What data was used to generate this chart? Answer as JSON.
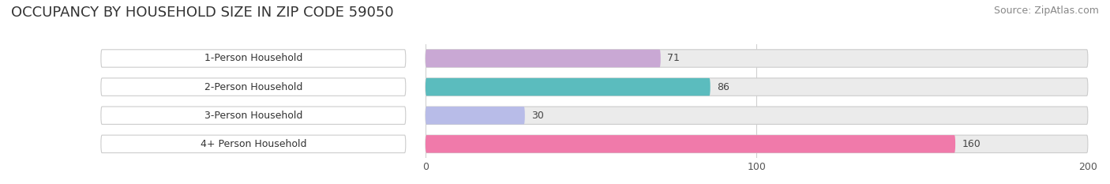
{
  "title": "OCCUPANCY BY HOUSEHOLD SIZE IN ZIP CODE 59050",
  "source": "Source: ZipAtlas.com",
  "categories": [
    "1-Person Household",
    "2-Person Household",
    "3-Person Household",
    "4+ Person Household"
  ],
  "values": [
    71,
    86,
    30,
    160
  ],
  "bar_colors": [
    "#c9a8d4",
    "#5bbcbe",
    "#b8bce8",
    "#f07aaa"
  ],
  "bar_border_colors": [
    "#b090c0",
    "#40a8aa",
    "#9090d0",
    "#e05090"
  ],
  "label_bg_color": "#ffffff",
  "bar_bg_color": "#ebebeb",
  "xlim": [
    -100,
    200
  ],
  "data_xlim": [
    0,
    200
  ],
  "xticks": [
    0,
    100,
    200
  ],
  "title_fontsize": 13,
  "source_fontsize": 9,
  "label_fontsize": 9,
  "value_fontsize": 9,
  "background_color": "#ffffff",
  "bar_bg_full": 200
}
